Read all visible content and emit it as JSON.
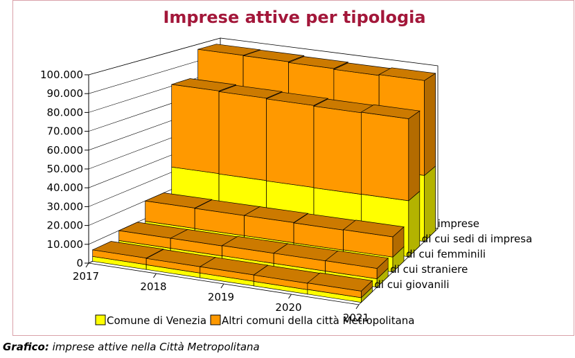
{
  "chart_data": {
    "type": "bar3d_stacked",
    "title": "Imprese attive per tipologia",
    "categories": [
      "2017",
      "2018",
      "2019",
      "2020",
      "2021"
    ],
    "rows": [
      "imprese",
      "di cui sedi di impresa",
      "di cui femminili",
      "di cui straniere",
      "di cui giovanili"
    ],
    "series": [
      {
        "name": "Comune di Venezia",
        "color": "#ffff00",
        "values": [
          [
            40000,
            39800,
            39500,
            39300,
            39500
          ],
          [
            33000,
            32800,
            32600,
            32400,
            32500
          ],
          [
            8500,
            8400,
            8400,
            8300,
            8400
          ],
          [
            4500,
            4500,
            4600,
            4600,
            4600
          ],
          [
            2600,
            2500,
            2500,
            2400,
            2500
          ]
        ]
      },
      {
        "name": "Altri comuni della città Metropolitana",
        "color": "#ff9900",
        "values": [
          [
            57000,
            57000,
            56800,
            56500,
            56800
          ],
          [
            48000,
            47800,
            47600,
            47400,
            47600
          ],
          [
            11500,
            11400,
            11400,
            11300,
            11400
          ],
          [
            5500,
            5500,
            5600,
            5600,
            5700
          ],
          [
            3500,
            3400,
            3400,
            3400,
            3500
          ]
        ]
      }
    ],
    "ylim": [
      0,
      100000
    ],
    "yticks": [
      0,
      {
        "value": 10000,
        "label": "10.000"
      },
      {
        "value": 20000,
        "label": "20.000"
      },
      {
        "value": 30000,
        "label": "30.000"
      },
      {
        "value": 40000,
        "label": "40.000"
      },
      {
        "value": 50000,
        "label": "50.000"
      },
      {
        "value": 60000,
        "label": "60.000"
      },
      {
        "value": 70000,
        "label": "70.000"
      },
      {
        "value": 80000,
        "label": "80.000"
      },
      {
        "value": 90000,
        "label": "90.000"
      },
      {
        "value": 100000,
        "label": "100.000"
      }
    ],
    "grid": true
  },
  "caption": {
    "label": "Grafico:",
    "text": "imprese attive nella Città Metropolitana"
  }
}
